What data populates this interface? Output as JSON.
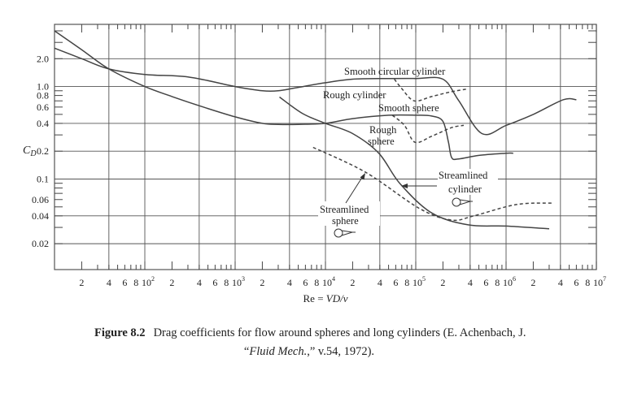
{
  "chart_data": {
    "type": "line",
    "xlabel_prefix": "Re = ",
    "xlabel_italic": "VD/ν",
    "ylabel": "C",
    "ylabel_sub": "D",
    "x_scale": "log",
    "y_scale": "log",
    "xlim": [
      10,
      10000000
    ],
    "ylim": [
      0.0105,
      4.7
    ],
    "grid": true,
    "x_grid_values": [
      40,
      100,
      400,
      1000,
      4000,
      10000,
      40000,
      100000,
      400000,
      1000000,
      4000000
    ],
    "y_grid_values": [
      2.0,
      1.0,
      0.4,
      0.2,
      0.1,
      0.04,
      0.02
    ],
    "x_ticks": [
      {
        "value": 20,
        "label": "2"
      },
      {
        "value": 40,
        "label": "4"
      },
      {
        "value": 60,
        "label": "6"
      },
      {
        "value": 80,
        "label": "8"
      },
      {
        "value": 100,
        "label": "10",
        "exp": "2"
      },
      {
        "value": 200,
        "label": "2"
      },
      {
        "value": 400,
        "label": "4"
      },
      {
        "value": 600,
        "label": "6"
      },
      {
        "value": 800,
        "label": "8"
      },
      {
        "value": 1000,
        "label": "10",
        "exp": "3"
      },
      {
        "value": 2000,
        "label": "2"
      },
      {
        "value": 4000,
        "label": "4"
      },
      {
        "value": 6000,
        "label": "6"
      },
      {
        "value": 8000,
        "label": "8"
      },
      {
        "value": 10000,
        "label": "10",
        "exp": "4"
      },
      {
        "value": 20000,
        "label": "2"
      },
      {
        "value": 40000,
        "label": "4"
      },
      {
        "value": 60000,
        "label": "6"
      },
      {
        "value": 80000,
        "label": "8"
      },
      {
        "value": 100000,
        "label": "10",
        "exp": "5"
      },
      {
        "value": 200000,
        "label": "2"
      },
      {
        "value": 400000,
        "label": "4"
      },
      {
        "value": 600000,
        "label": "6"
      },
      {
        "value": 800000,
        "label": "8"
      },
      {
        "value": 1000000,
        "label": "10",
        "exp": "6"
      },
      {
        "value": 2000000,
        "label": "2"
      },
      {
        "value": 4000000,
        "label": "4"
      },
      {
        "value": 6000000,
        "label": "6"
      },
      {
        "value": 8000000,
        "label": "8"
      },
      {
        "value": 10000000,
        "label": "10",
        "exp": "7"
      }
    ],
    "y_ticks": [
      {
        "value": 2.0,
        "label": "2.0"
      },
      {
        "value": 1.0,
        "label": "1.0"
      },
      {
        "value": 0.8,
        "label": "0.8"
      },
      {
        "value": 0.6,
        "label": "0.6"
      },
      {
        "value": 0.4,
        "label": "0.4"
      },
      {
        "value": 0.2,
        "label": "0.2"
      },
      {
        "value": 0.1,
        "label": "0.1"
      },
      {
        "value": 0.06,
        "label": "0.06"
      },
      {
        "value": 0.04,
        "label": "0.04"
      },
      {
        "value": 0.02,
        "label": "0.02"
      }
    ],
    "series": [
      {
        "name": "Smooth circular cylinder",
        "style": "solid",
        "x": [
          10,
          20,
          40,
          100,
          300,
          1000,
          2000,
          3000,
          5000,
          10000,
          20000,
          50000,
          100000,
          200000,
          300000,
          540000,
          1000000,
          2000000,
          4300000,
          6000000
        ],
        "y": [
          2.6,
          2.0,
          1.55,
          1.35,
          1.27,
          1.0,
          0.9,
          0.9,
          0.98,
          1.1,
          1.2,
          1.22,
          1.22,
          1.2,
          0.7,
          0.31,
          0.38,
          0.5,
          0.72,
          0.72
        ]
      },
      {
        "name": "Rough cylinder",
        "style": "dashed",
        "x": [
          58000,
          70000,
          96000,
          150000,
          250000,
          370000
        ],
        "y": [
          1.2,
          0.95,
          0.7,
          0.78,
          0.88,
          0.94
        ]
      },
      {
        "name": "Smooth sphere",
        "style": "solid",
        "x": [
          10,
          20,
          40,
          100,
          200,
          400,
          1000,
          2000,
          3000,
          5000,
          10000,
          20000,
          50000,
          100000,
          150000,
          200000,
          230000,
          250000,
          300000,
          500000,
          1000000,
          1200000
        ],
        "y": [
          4.0,
          2.5,
          1.55,
          1.0,
          0.78,
          0.62,
          0.47,
          0.4,
          0.39,
          0.39,
          0.4,
          0.45,
          0.49,
          0.49,
          0.48,
          0.42,
          0.25,
          0.17,
          0.165,
          0.18,
          0.19,
          0.19
        ]
      },
      {
        "name": "Rough sphere",
        "style": "dashed",
        "x": [
          55000,
          75000,
          98000,
          150000,
          250000,
          340000
        ],
        "y": [
          0.49,
          0.38,
          0.25,
          0.29,
          0.36,
          0.38
        ]
      },
      {
        "name": "Streamlined cylinder",
        "style": "solid",
        "x": [
          3100,
          5600,
          10000,
          20000,
          39000,
          67000,
          150000,
          380000,
          1000000,
          3000000
        ],
        "y": [
          0.77,
          0.51,
          0.4,
          0.31,
          0.19,
          0.089,
          0.043,
          0.032,
          0.031,
          0.029
        ]
      },
      {
        "name": "Streamlined sphere",
        "style": "dashed",
        "x": [
          7300,
          28000,
          110000,
          250000,
          440000,
          1300000,
          3200000
        ],
        "y": [
          0.22,
          0.118,
          0.048,
          0.036,
          0.04,
          0.053,
          0.055
        ]
      }
    ],
    "annotations": {
      "smooth_cylinder": "Smooth circular cylinder",
      "rough_cylinder": "Rough cylinder",
      "smooth_sphere": "Smooth sphere",
      "rough_sphere_1": "Rough",
      "rough_sphere_2": "sphere",
      "streamlined_cylinder_1": "Streamlined",
      "streamlined_cylinder_2": "cylinder",
      "streamlined_sphere_1": "Streamlined",
      "streamlined_sphere_2": "sphere"
    },
    "colors": {
      "line": "#444444",
      "grid": "#555555",
      "text": "#222222"
    }
  },
  "caption": {
    "figure_label": "Figure 8.2",
    "text_1": "Drag coefficients for flow around spheres and long cylinders (E. Achenbach, J.",
    "text_2_open": "“",
    "text_2_italic": "Fluid Mech.",
    "text_2_rest": ",” v.54, 1972)."
  }
}
